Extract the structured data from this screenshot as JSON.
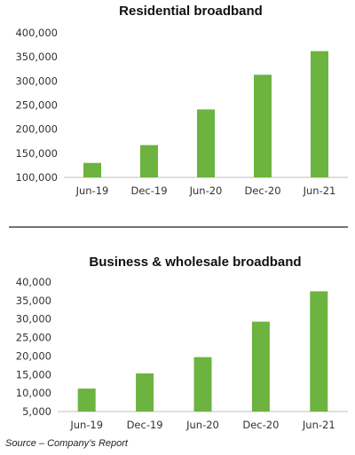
{
  "source_note": "Source – Company’s Report",
  "colors": {
    "bar": "#6db33f",
    "axis": "#bfbfbf",
    "divider": "#222222"
  },
  "chart_data": [
    {
      "type": "bar",
      "title": "Residential broadband",
      "categories": [
        "Jun-19",
        "Dec-19",
        "Jun-20",
        "Dec-20",
        "Jun-21"
      ],
      "values": [
        130000,
        167000,
        241000,
        313000,
        362000
      ],
      "yticks": [
        "100,000",
        "150,000",
        "200,000",
        "250,000",
        "300,000",
        "350,000",
        "400,000"
      ],
      "ylim": [
        100000,
        400000
      ],
      "xlabel": "",
      "ylabel": "",
      "grid": false,
      "legend": "none"
    },
    {
      "type": "bar",
      "title": "Business & wholesale broadband",
      "categories": [
        "Jun-19",
        "Dec-19",
        "Jun-20",
        "Dec-20",
        "Jun-21"
      ],
      "values": [
        11200,
        15300,
        19700,
        29300,
        37500
      ],
      "yticks": [
        "5,000",
        "10,000",
        "15,000",
        "20,000",
        "25,000",
        "30,000",
        "35,000",
        "40,000"
      ],
      "ylim": [
        5000,
        40000
      ],
      "xlabel": "",
      "ylabel": "",
      "grid": false,
      "legend": "none"
    }
  ]
}
